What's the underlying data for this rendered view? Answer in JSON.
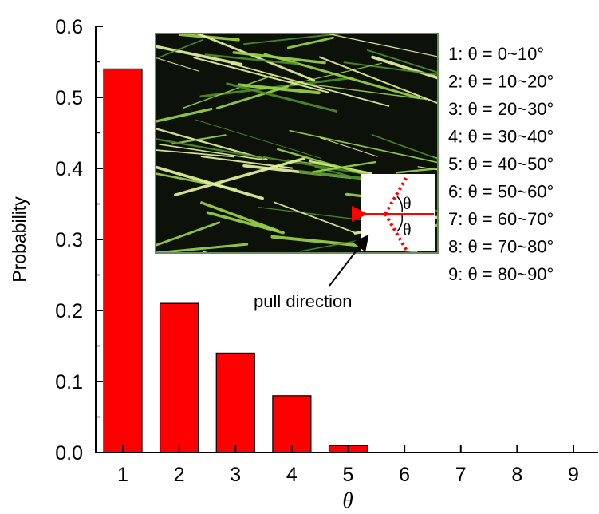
{
  "chart_data": {
    "type": "bar",
    "categories": [
      "1",
      "2",
      "3",
      "4",
      "5",
      "6",
      "7",
      "8",
      "9"
    ],
    "values": [
      0.54,
      0.21,
      0.14,
      0.08,
      0.01,
      0,
      0,
      0,
      0
    ],
    "xlabel": "θ",
    "ylabel": "Probability",
    "ylim": [
      0.0,
      0.6
    ],
    "yticks": [
      "0.0",
      "0.1",
      "0.2",
      "0.3",
      "0.4",
      "0.5",
      "0.6"
    ],
    "grid": false,
    "bar_color": "#ff0000",
    "legend_entries": [
      "1: θ = 0~10°",
      "2: θ = 10~20°",
      "3: θ = 20~30°",
      "4: θ = 30~40°",
      "5: θ = 40~50°",
      "6: θ = 50~60°",
      "7: θ = 60~70°",
      "8: θ = 70~80°",
      "9: θ = 80~90°"
    ],
    "legend_placement": "top-right",
    "annotation": "pull direction",
    "inset_theta_label": "θ",
    "inset": "micrograph of aligned green fibers with angle diagram"
  }
}
